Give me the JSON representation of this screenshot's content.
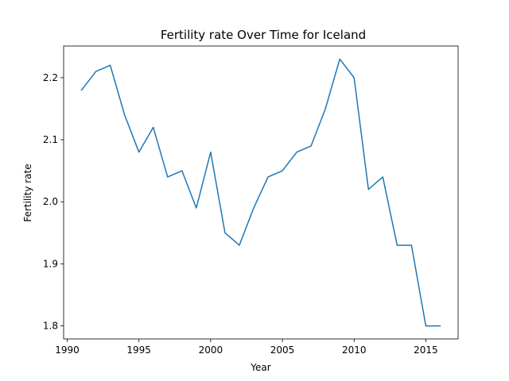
{
  "chart_data": {
    "type": "line",
    "title": "Fertility rate Over Time for Iceland",
    "xlabel": "Year",
    "ylabel": "Fertility rate",
    "xlim": [
      1989.75,
      2017.25
    ],
    "ylim": [
      1.779,
      2.251
    ],
    "x_ticks": [
      1990,
      1995,
      2000,
      2005,
      2010,
      2015
    ],
    "y_ticks": [
      1.8,
      1.9,
      2.0,
      2.1,
      2.2
    ],
    "x_tick_labels": [
      "1990",
      "1995",
      "2000",
      "2005",
      "2010",
      "2015"
    ],
    "y_tick_labels": [
      "1.8",
      "1.9",
      "2.0",
      "2.1",
      "2.2"
    ],
    "grid": false,
    "legend": "none",
    "series": [
      {
        "color": "#1f77b4",
        "x": [
          1991,
          1992,
          1993,
          1994,
          1995,
          1996,
          1997,
          1998,
          1999,
          2000,
          2001,
          2002,
          2003,
          2004,
          2005,
          2006,
          2007,
          2008,
          2009,
          2010,
          2011,
          2012,
          2013,
          2014,
          2015,
          2016
        ],
        "y": [
          2.18,
          2.21,
          2.22,
          2.14,
          2.08,
          2.12,
          2.04,
          2.05,
          1.99,
          2.08,
          1.95,
          1.93,
          1.99,
          2.04,
          2.05,
          2.08,
          2.09,
          2.15,
          2.23,
          2.2,
          2.02,
          2.04,
          1.93,
          1.93,
          1.8,
          1.8
        ]
      }
    ]
  }
}
